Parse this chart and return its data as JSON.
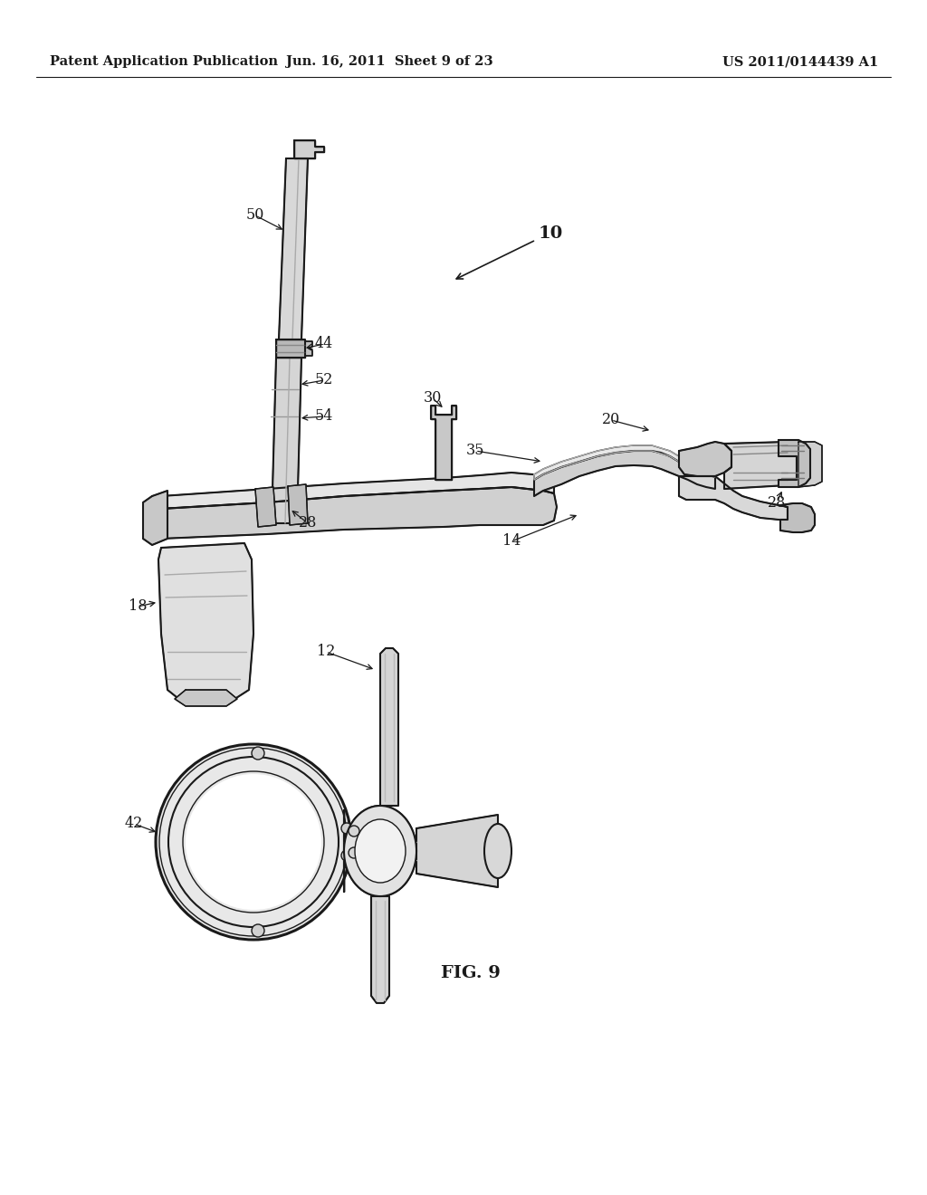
{
  "background_color": "#ffffff",
  "header_left": "Patent Application Publication",
  "header_center": "Jun. 16, 2011  Sheet 9 of 23",
  "header_right": "US 2011/0144439 A1",
  "figure_label": "FIG. 9",
  "line_color": "#1a1a1a",
  "label_fontsize": 11.5,
  "header_fontsize": 10.5,
  "fig_label_fontsize": 14,
  "label_bold_fontsize": 13
}
